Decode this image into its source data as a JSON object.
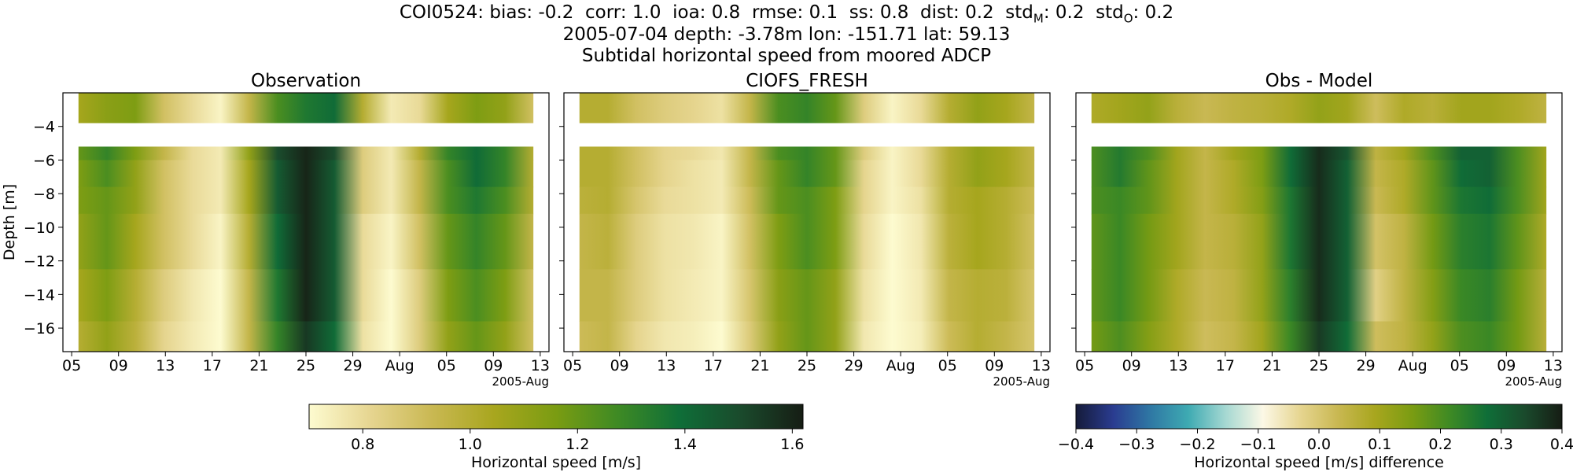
{
  "header": {
    "stats": {
      "station": "COI0524",
      "bias_label": "bias:",
      "bias": "-0.2",
      "corr_label": "corr:",
      "corr": "1.0",
      "ioa_label": "ioa:",
      "ioa": "0.8",
      "rmse_label": "rmse:",
      "rmse": "0.1",
      "ss_label": "ss:",
      "ss": "0.8",
      "dist_label": "dist:",
      "dist": "0.2",
      "std_label": "std",
      "std_m_sub": "M",
      "std_m": "0.2",
      "std_o_sub": "O",
      "std_o": "0.2"
    },
    "line2": "2005-07-04 depth: -3.78m lon: -151.71 lat: 59.13",
    "line3": "Subtidal horizontal speed from moored ADCP"
  },
  "chart_data": [
    {
      "type": "heatmap",
      "title": "Observation",
      "ylabel": "Depth [m]",
      "xlabel": "",
      "x_tick_labels": [
        "05",
        "09",
        "13",
        "17",
        "21",
        "25",
        "29",
        "Aug",
        "05",
        "09",
        "13"
      ],
      "x_offset_label": "2005-Aug",
      "y_ticks": [
        -4,
        -6,
        -8,
        -10,
        -12,
        -14,
        -16
      ],
      "ylim": [
        -17.4,
        -2.0
      ],
      "depth_bins": [
        [
          -3.78,
          -2.0
        ],
        [
          -6.0,
          -5.2
        ],
        [
          -7.6,
          -6.0
        ],
        [
          -9.2,
          -7.6
        ],
        [
          -12.5,
          -9.2
        ],
        [
          -15.6,
          -12.5
        ],
        [
          -17.4,
          -15.6
        ]
      ],
      "colorscale": "speed",
      "values_by_depth": [
        [
          1.05,
          1.12,
          1.15,
          0.9,
          0.8,
          0.72,
          0.95,
          1.25,
          1.35,
          1.4,
          1.0,
          0.75,
          0.8,
          1.05,
          1.15,
          1.1,
          0.9
        ],
        [
          1.2,
          1.3,
          1.15,
          0.95,
          0.8,
          0.75,
          1.1,
          1.5,
          1.6,
          1.5,
          0.85,
          0.75,
          1.0,
          1.3,
          1.4,
          1.3,
          1.0
        ],
        [
          1.15,
          1.25,
          1.1,
          0.9,
          0.8,
          0.75,
          1.05,
          1.45,
          1.6,
          1.45,
          0.85,
          0.75,
          0.95,
          1.25,
          1.4,
          1.3,
          1.0
        ],
        [
          1.15,
          1.2,
          1.1,
          0.9,
          0.8,
          0.75,
          1.05,
          1.45,
          1.6,
          1.45,
          0.85,
          0.75,
          0.95,
          1.25,
          1.35,
          1.25,
          1.0
        ],
        [
          1.1,
          1.2,
          1.05,
          0.9,
          0.8,
          0.72,
          1.0,
          1.4,
          1.6,
          1.45,
          0.8,
          0.72,
          0.9,
          1.2,
          1.3,
          1.2,
          0.95
        ],
        [
          1.05,
          1.15,
          1.0,
          0.85,
          0.76,
          0.7,
          0.95,
          1.35,
          1.6,
          1.45,
          0.8,
          0.7,
          0.85,
          1.15,
          1.25,
          1.15,
          0.9
        ],
        [
          1.0,
          1.1,
          0.98,
          0.82,
          0.75,
          0.7,
          0.95,
          1.3,
          1.55,
          1.4,
          0.78,
          0.7,
          0.85,
          1.1,
          1.2,
          1.1,
          0.9
        ]
      ]
    },
    {
      "type": "heatmap",
      "title": "CIOFS_FRESH",
      "xlabel": "",
      "x_tick_labels": [
        "05",
        "09",
        "13",
        "17",
        "21",
        "25",
        "29",
        "Aug",
        "05",
        "09",
        "13"
      ],
      "x_offset_label": "2005-Aug",
      "ylim": [
        -17.4,
        -2.0
      ],
      "colorscale": "speed",
      "values_by_depth": [
        [
          1.0,
          1.0,
          0.9,
          0.85,
          0.82,
          0.78,
          0.95,
          1.25,
          1.3,
          1.2,
          0.85,
          0.72,
          0.8,
          1.0,
          1.1,
          1.05,
          0.95
        ],
        [
          1.0,
          1.0,
          0.9,
          0.82,
          0.8,
          0.76,
          0.95,
          1.25,
          1.3,
          1.2,
          0.85,
          0.72,
          0.8,
          1.0,
          1.1,
          1.05,
          0.95
        ],
        [
          1.0,
          1.0,
          0.9,
          0.82,
          0.78,
          0.75,
          0.95,
          1.2,
          1.3,
          1.2,
          0.82,
          0.72,
          0.8,
          1.0,
          1.1,
          1.05,
          0.95
        ],
        [
          0.98,
          1.0,
          0.88,
          0.8,
          0.78,
          0.75,
          0.92,
          1.2,
          1.25,
          1.15,
          0.82,
          0.72,
          0.78,
          1.0,
          1.05,
          1.0,
          0.92
        ],
        [
          0.95,
          0.98,
          0.85,
          0.78,
          0.76,
          0.72,
          0.9,
          1.15,
          1.25,
          1.15,
          0.8,
          0.7,
          0.76,
          0.98,
          1.05,
          1.0,
          0.9
        ],
        [
          0.95,
          0.95,
          0.85,
          0.78,
          0.75,
          0.72,
          0.88,
          1.12,
          1.2,
          1.1,
          0.78,
          0.7,
          0.75,
          0.95,
          1.0,
          0.98,
          0.88
        ],
        [
          0.92,
          0.95,
          0.82,
          0.76,
          0.74,
          0.7,
          0.86,
          1.1,
          1.2,
          1.1,
          0.76,
          0.7,
          0.74,
          0.92,
          1.0,
          0.95,
          0.88
        ]
      ]
    },
    {
      "type": "heatmap",
      "title": "Obs - Model",
      "xlabel": "",
      "x_tick_labels": [
        "05",
        "09",
        "13",
        "17",
        "21",
        "25",
        "29",
        "Aug",
        "05",
        "09",
        "13"
      ],
      "x_offset_label": "2005-Aug",
      "ylim": [
        -17.4,
        -2.0
      ],
      "colorscale": "difference",
      "values_by_depth": [
        [
          0.08,
          0.1,
          0.12,
          0.06,
          0.03,
          0.05,
          0.06,
          0.08,
          0.12,
          0.1,
          0.02,
          0.08,
          0.06,
          0.1,
          0.1,
          0.08,
          0.05
        ],
        [
          0.2,
          0.25,
          0.2,
          0.1,
          0.04,
          0.1,
          0.15,
          0.28,
          0.38,
          0.32,
          0.05,
          0.1,
          0.2,
          0.3,
          0.3,
          0.2,
          0.1
        ],
        [
          0.2,
          0.25,
          0.18,
          0.1,
          0.04,
          0.08,
          0.15,
          0.28,
          0.38,
          0.3,
          0.04,
          0.08,
          0.18,
          0.28,
          0.3,
          0.2,
          0.1
        ],
        [
          0.2,
          0.22,
          0.18,
          0.1,
          0.04,
          0.08,
          0.14,
          0.26,
          0.38,
          0.3,
          0.03,
          0.08,
          0.18,
          0.26,
          0.28,
          0.2,
          0.1
        ],
        [
          0.18,
          0.22,
          0.16,
          0.1,
          0.04,
          0.06,
          0.12,
          0.26,
          0.38,
          0.3,
          0.01,
          0.05,
          0.16,
          0.24,
          0.26,
          0.18,
          0.08
        ],
        [
          0.18,
          0.22,
          0.16,
          0.08,
          0.03,
          0.05,
          0.12,
          0.24,
          0.38,
          0.3,
          -0.02,
          0.05,
          0.14,
          0.22,
          0.24,
          0.16,
          0.06
        ],
        [
          0.16,
          0.2,
          0.14,
          0.08,
          0.02,
          0.04,
          0.1,
          0.22,
          0.36,
          0.28,
          0.02,
          0.05,
          0.12,
          0.2,
          0.22,
          0.16,
          0.06
        ]
      ]
    }
  ],
  "colorbars": [
    {
      "label": "Horizontal speed [m/s]",
      "range": [
        0.7,
        1.62
      ],
      "ticks": [
        0.8,
        1.0,
        1.2,
        1.4,
        1.6
      ],
      "tick_labels": [
        "0.8",
        "1.0",
        "1.2",
        "1.4",
        "1.6"
      ],
      "colors": [
        "#fdfbd0",
        "#e6d590",
        "#c9b852",
        "#a8a61e",
        "#7a9c12",
        "#3e8a24",
        "#0f6e38",
        "#1a4a2c",
        "#161d14"
      ]
    },
    {
      "label": "Horizontal speed [m/s] difference",
      "range": [
        -0.4,
        0.4
      ],
      "ticks": [
        -0.4,
        -0.3,
        -0.2,
        -0.1,
        0.0,
        0.1,
        0.2,
        0.3,
        0.4
      ],
      "tick_labels": [
        "−0.4",
        "−0.3",
        "−0.2",
        "−0.1",
        "0.0",
        "0.1",
        "0.2",
        "0.3",
        "0.4"
      ],
      "colors": [
        "#151b3a",
        "#2a3c90",
        "#2f78a4",
        "#3eaab2",
        "#a5d8d2",
        "#fcf8e6",
        "#e6d590",
        "#c9b852",
        "#a8a61e",
        "#7a9c12",
        "#3e8a24",
        "#0f6e38",
        "#1a4a2c",
        "#161d14"
      ]
    }
  ]
}
